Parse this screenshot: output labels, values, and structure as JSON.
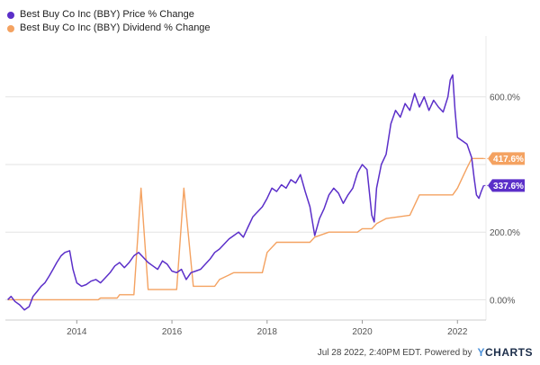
{
  "chart_data": {
    "type": "line",
    "title": "",
    "xlabel": "",
    "ylabel": "",
    "x_ticks": [
      "2014",
      "2016",
      "2018",
      "2020",
      "2022"
    ],
    "y_ticks": [
      "0.00%",
      "200.0%",
      "600.0%"
    ],
    "xlim": [
      2012.5,
      2022.6
    ],
    "ylim": [
      -60,
      780
    ],
    "grid": true,
    "legend_position": "top-left",
    "series": [
      {
        "name": "Best Buy Co Inc (BBY) Price % Change",
        "color": "#5b2fc9",
        "end_label": "337.6%",
        "points": [
          [
            2012.55,
            0
          ],
          [
            2012.62,
            10
          ],
          [
            2012.7,
            -5
          ],
          [
            2012.8,
            -15
          ],
          [
            2012.9,
            -30
          ],
          [
            2013.0,
            -20
          ],
          [
            2013.08,
            10
          ],
          [
            2013.17,
            25
          ],
          [
            2013.25,
            40
          ],
          [
            2013.33,
            50
          ],
          [
            2013.42,
            70
          ],
          [
            2013.5,
            90
          ],
          [
            2013.58,
            110
          ],
          [
            2013.67,
            130
          ],
          [
            2013.75,
            140
          ],
          [
            2013.85,
            145
          ],
          [
            2013.92,
            90
          ],
          [
            2014.0,
            50
          ],
          [
            2014.1,
            40
          ],
          [
            2014.2,
            45
          ],
          [
            2014.3,
            55
          ],
          [
            2014.4,
            60
          ],
          [
            2014.5,
            50
          ],
          [
            2014.6,
            65
          ],
          [
            2014.7,
            80
          ],
          [
            2014.8,
            100
          ],
          [
            2014.9,
            110
          ],
          [
            2015.0,
            95
          ],
          [
            2015.1,
            110
          ],
          [
            2015.2,
            130
          ],
          [
            2015.3,
            140
          ],
          [
            2015.4,
            125
          ],
          [
            2015.5,
            110
          ],
          [
            2015.6,
            100
          ],
          [
            2015.7,
            90
          ],
          [
            2015.8,
            115
          ],
          [
            2015.9,
            105
          ],
          [
            2016.0,
            85
          ],
          [
            2016.1,
            80
          ],
          [
            2016.2,
            90
          ],
          [
            2016.3,
            60
          ],
          [
            2016.4,
            80
          ],
          [
            2016.5,
            85
          ],
          [
            2016.6,
            90
          ],
          [
            2016.7,
            105
          ],
          [
            2016.8,
            120
          ],
          [
            2016.9,
            140
          ],
          [
            2017.0,
            150
          ],
          [
            2017.1,
            165
          ],
          [
            2017.2,
            180
          ],
          [
            2017.3,
            190
          ],
          [
            2017.4,
            200
          ],
          [
            2017.5,
            185
          ],
          [
            2017.6,
            215
          ],
          [
            2017.7,
            245
          ],
          [
            2017.8,
            260
          ],
          [
            2017.9,
            275
          ],
          [
            2018.0,
            300
          ],
          [
            2018.1,
            330
          ],
          [
            2018.2,
            320
          ],
          [
            2018.3,
            340
          ],
          [
            2018.4,
            330
          ],
          [
            2018.5,
            355
          ],
          [
            2018.6,
            345
          ],
          [
            2018.7,
            370
          ],
          [
            2018.8,
            320
          ],
          [
            2018.9,
            275
          ],
          [
            2019.0,
            190
          ],
          [
            2019.1,
            240
          ],
          [
            2019.2,
            270
          ],
          [
            2019.3,
            310
          ],
          [
            2019.4,
            330
          ],
          [
            2019.5,
            315
          ],
          [
            2019.6,
            285
          ],
          [
            2019.7,
            310
          ],
          [
            2019.8,
            330
          ],
          [
            2019.9,
            375
          ],
          [
            2020.0,
            400
          ],
          [
            2020.1,
            385
          ],
          [
            2020.2,
            250
          ],
          [
            2020.25,
            230
          ],
          [
            2020.3,
            330
          ],
          [
            2020.4,
            400
          ],
          [
            2020.5,
            430
          ],
          [
            2020.6,
            520
          ],
          [
            2020.7,
            560
          ],
          [
            2020.8,
            540
          ],
          [
            2020.9,
            580
          ],
          [
            2021.0,
            560
          ],
          [
            2021.1,
            610
          ],
          [
            2021.2,
            570
          ],
          [
            2021.3,
            600
          ],
          [
            2021.4,
            560
          ],
          [
            2021.5,
            590
          ],
          [
            2021.6,
            570
          ],
          [
            2021.7,
            555
          ],
          [
            2021.8,
            600
          ],
          [
            2021.85,
            650
          ],
          [
            2021.9,
            665
          ],
          [
            2021.95,
            560
          ],
          [
            2022.0,
            480
          ],
          [
            2022.1,
            470
          ],
          [
            2022.2,
            460
          ],
          [
            2022.3,
            420
          ],
          [
            2022.35,
            360
          ],
          [
            2022.4,
            310
          ],
          [
            2022.45,
            300
          ],
          [
            2022.5,
            320
          ],
          [
            2022.55,
            337.6
          ]
        ]
      },
      {
        "name": "Best Buy Co Inc (BBY) Dividend % Change",
        "color": "#f4a261",
        "end_label": "417.6%",
        "points": [
          [
            2012.55,
            0
          ],
          [
            2014.45,
            0
          ],
          [
            2014.5,
            5
          ],
          [
            2014.85,
            5
          ],
          [
            2014.9,
            15
          ],
          [
            2015.2,
            15
          ],
          [
            2015.35,
            330
          ],
          [
            2015.5,
            30
          ],
          [
            2016.1,
            30
          ],
          [
            2016.25,
            330
          ],
          [
            2016.45,
            40
          ],
          [
            2016.6,
            40
          ],
          [
            2016.9,
            40
          ],
          [
            2017.0,
            60
          ],
          [
            2017.3,
            80
          ],
          [
            2017.9,
            80
          ],
          [
            2018.0,
            140
          ],
          [
            2018.2,
            170
          ],
          [
            2018.9,
            170
          ],
          [
            2019.0,
            185
          ],
          [
            2019.3,
            200
          ],
          [
            2019.9,
            200
          ],
          [
            2020.0,
            210
          ],
          [
            2020.2,
            210
          ],
          [
            2020.3,
            225
          ],
          [
            2020.5,
            240
          ],
          [
            2021.0,
            250
          ],
          [
            2021.2,
            310
          ],
          [
            2021.9,
            310
          ],
          [
            2022.0,
            330
          ],
          [
            2022.2,
            390
          ],
          [
            2022.3,
            417.6
          ],
          [
            2022.55,
            417.6
          ]
        ]
      }
    ]
  },
  "footer": {
    "timestamp": "Jul 28 2022, 2:40PM EDT.",
    "powered_by": "Powered by",
    "brand_y": "Y",
    "brand_rest": "CHARTS"
  }
}
